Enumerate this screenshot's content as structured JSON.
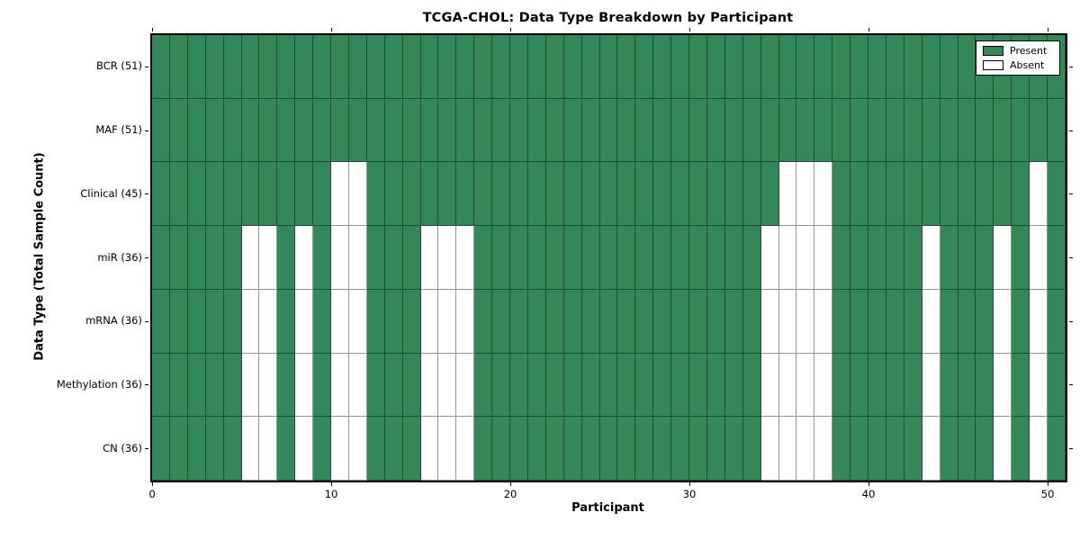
{
  "chart_data": {
    "type": "heatmap",
    "title": "TCGA-CHOL: Data Type Breakdown by Participant",
    "xlabel": "Participant",
    "ylabel": "Data Type (Total Sample Count)",
    "x_ticks": [
      0,
      10,
      20,
      30,
      40,
      50
    ],
    "x_range": [
      0,
      51
    ],
    "n_participants": 51,
    "grid": "cell-borders",
    "rows": [
      {
        "label": "BCR (51)",
        "present_count": 51,
        "absent_participants": []
      },
      {
        "label": "MAF (51)",
        "present_count": 51,
        "absent_participants": []
      },
      {
        "label": "Clinical (45)",
        "present_count": 45,
        "absent_participants": [
          10,
          11,
          35,
          36,
          37,
          49
        ]
      },
      {
        "label": "miR (36)",
        "present_count": 36,
        "absent_participants": [
          5,
          6,
          8,
          10,
          11,
          15,
          16,
          17,
          34,
          35,
          36,
          37,
          43,
          47,
          49
        ]
      },
      {
        "label": "mRNA (36)",
        "present_count": 36,
        "absent_participants": [
          5,
          6,
          8,
          10,
          11,
          15,
          16,
          17,
          34,
          35,
          36,
          37,
          43,
          47,
          49
        ]
      },
      {
        "label": "Methylation (36)",
        "present_count": 36,
        "absent_participants": [
          5,
          6,
          8,
          10,
          11,
          15,
          16,
          17,
          34,
          35,
          36,
          37,
          43,
          47,
          49
        ]
      },
      {
        "label": "CN (36)",
        "present_count": 36,
        "absent_participants": [
          5,
          6,
          8,
          10,
          11,
          15,
          16,
          17,
          34,
          35,
          36,
          37,
          43,
          47,
          49
        ]
      }
    ],
    "legend": {
      "position": "upper right",
      "entries": [
        {
          "label": "Present",
          "color": "#348759"
        },
        {
          "label": "Absent",
          "color": "#ffffff"
        }
      ]
    },
    "colors": {
      "present": "#348759",
      "absent": "#ffffff",
      "cell_border": "rgba(0,0,0,0.42)",
      "frame": "#000000",
      "background": "#ffffff"
    }
  }
}
